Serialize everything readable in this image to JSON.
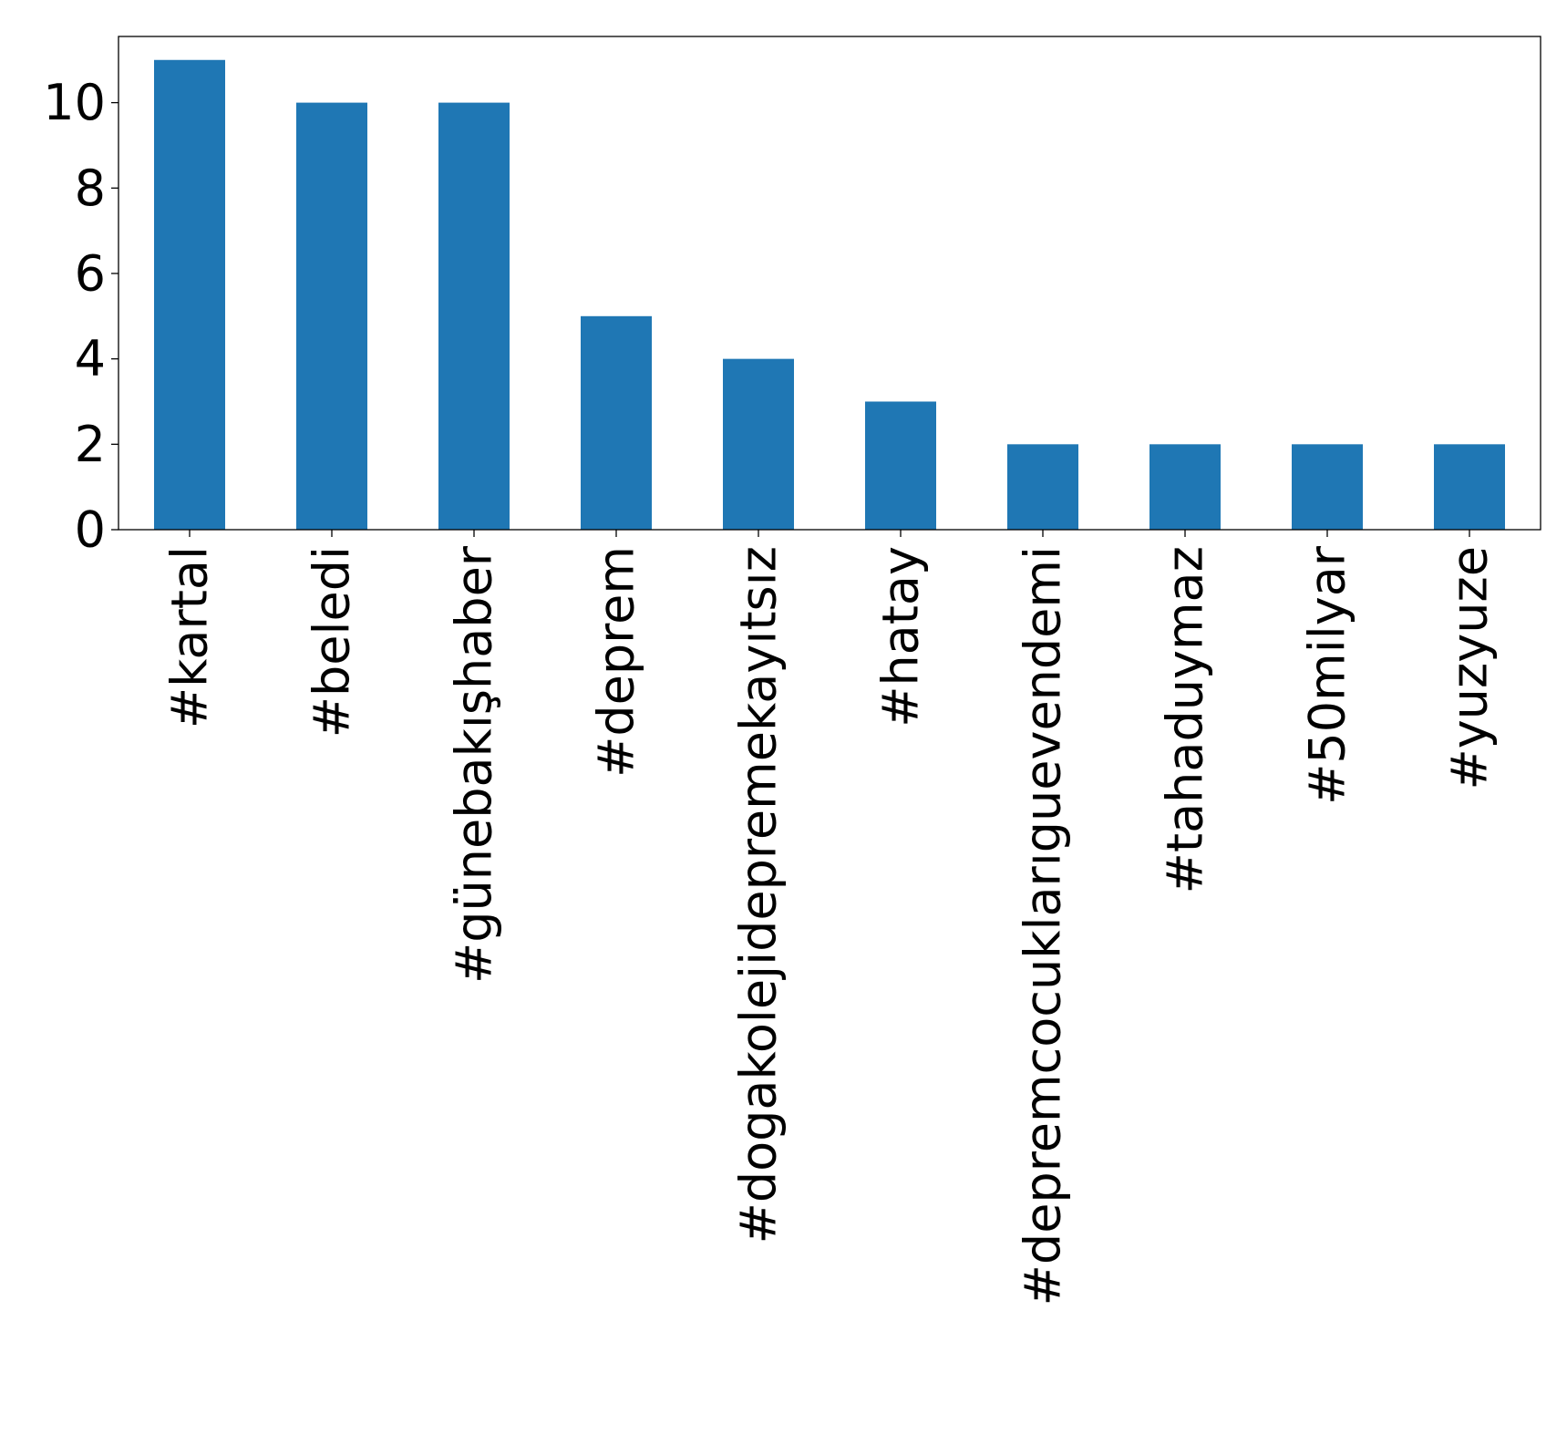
{
  "chart_data": {
    "type": "bar",
    "title": "",
    "xlabel": "",
    "ylabel": "",
    "categories": [
      "#kartal",
      "#beledi",
      "#günebakışhaber",
      "#deprem",
      "#dogakolejidepremekayıtsız",
      "#hatay",
      "#depremcocuklarıguevendemi",
      "#tahaduymaz",
      "#50milyar",
      "#yuzyuze"
    ],
    "values": [
      11,
      10,
      10,
      5,
      4,
      3,
      2,
      2,
      2,
      2
    ],
    "ylim": [
      0,
      11.55
    ],
    "yticks": [
      0,
      2,
      4,
      6,
      8,
      10
    ],
    "bar_color": "#1f77b4",
    "grid": false,
    "legend": "none"
  }
}
